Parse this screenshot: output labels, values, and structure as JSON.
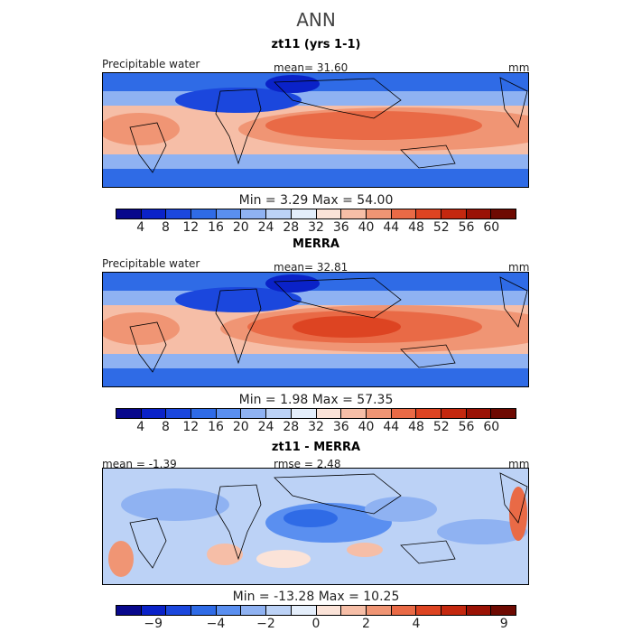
{
  "title": "ANN",
  "palette": [
    "#08088c",
    "#0a22c8",
    "#1b47dd",
    "#2f6be6",
    "#5a8ff0",
    "#8fb2f2",
    "#bcd2f6",
    "#e4eefb",
    "#fbe3d8",
    "#f6bea7",
    "#f09574",
    "#e96a46",
    "#dd4422",
    "#c4280f",
    "#9a1205",
    "#6e0a02"
  ],
  "panels": [
    {
      "title": "zt11 (yrs 1-1)",
      "left_label": "Precipitable water",
      "center_label": "mean=  31.60",
      "units": "mm",
      "stats": "Min =   3.29  Max =  54.00",
      "colorbar_ticks": [
        "4",
        "8",
        "12",
        "16",
        "20",
        "24",
        "28",
        "32",
        "36",
        "40",
        "44",
        "48",
        "52",
        "56",
        "60"
      ]
    },
    {
      "title": "MERRA",
      "left_label": "Precipitable water",
      "center_label": "mean=  32.81",
      "units": "mm",
      "stats": "Min =   1.98  Max =  57.35",
      "colorbar_ticks": [
        "4",
        "8",
        "12",
        "16",
        "20",
        "24",
        "28",
        "32",
        "36",
        "40",
        "44",
        "48",
        "52",
        "56",
        "60"
      ]
    },
    {
      "title": "zt11 - MERRA",
      "left_label": "mean =  -1.39",
      "center_label": "rmse =   2.48",
      "units": "mm",
      "stats": "Min = -13.28  Max =  10.25",
      "colorbar_ticks": [
        "-9",
        "-4",
        "-2",
        "0",
        "2",
        "4",
        "9"
      ]
    }
  ]
}
